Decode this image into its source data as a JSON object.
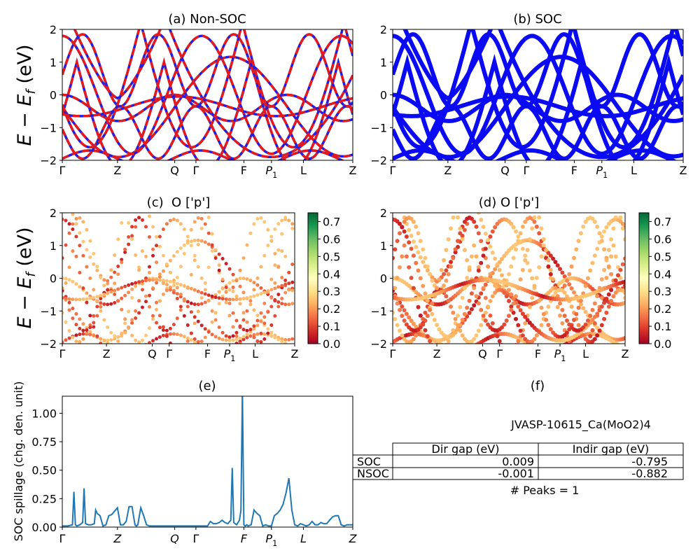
{
  "chart_data": [
    {
      "panel": "a",
      "type": "line",
      "title": "(a) Non-SOC",
      "ylabel": "E − E_f (eV)",
      "ylim": [
        -2,
        2
      ],
      "yticks": [
        "2",
        "1",
        "0",
        "−1",
        "−2"
      ],
      "xticks": [
        "Γ",
        "Z",
        "Q",
        "Γ",
        "F",
        "P1",
        "L",
        "Z"
      ],
      "series": [
        {
          "color": "#1f1fe6",
          "style": "solid",
          "legend_shown": false
        },
        {
          "color": "#e61a1a",
          "style": "dashed",
          "legend_shown": false
        }
      ]
    },
    {
      "panel": "b",
      "type": "line",
      "title": "(b) SOC",
      "ylim": [
        -2,
        2
      ],
      "yticks": [
        "2",
        "1",
        "0",
        "−1",
        "−2"
      ],
      "xticks": [
        "Γ",
        "Z",
        "Q",
        "Γ",
        "F",
        "P1",
        "L",
        "Z"
      ],
      "series": [
        {
          "color": "#0a0af5",
          "style": "solid",
          "legend_shown": false
        }
      ]
    },
    {
      "panel": "c",
      "type": "scatter",
      "title": "(c)  O ['p']",
      "ylabel": "E − E_f (eV)",
      "ylim": [
        -2,
        2
      ],
      "yticks": [
        "2",
        "1",
        "0",
        "−1",
        "−2"
      ],
      "xticks": [
        "Γ",
        "Z",
        "Q",
        "Γ",
        "F",
        "P1",
        "L",
        "Z"
      ],
      "colorbar": {
        "colormap": "RdYlGn",
        "range": [
          0.0,
          0.75
        ],
        "ticks": [
          "0.7",
          "0.6",
          "0.5",
          "0.4",
          "0.3",
          "0.2",
          "0.1",
          "0.0"
        ]
      }
    },
    {
      "panel": "d",
      "type": "scatter",
      "title": "(d) O ['p']",
      "ylim": [
        -2,
        2
      ],
      "yticks": [
        "2",
        "1",
        "0",
        "−1",
        "−2"
      ],
      "xticks": [
        "Γ",
        "Z",
        "Q",
        "Γ",
        "F",
        "P1",
        "L",
        "Z"
      ],
      "colorbar": {
        "colormap": "RdYlGn",
        "range": [
          0.0,
          0.75
        ],
        "ticks": [
          "0.7",
          "0.6",
          "0.5",
          "0.4",
          "0.3",
          "0.2",
          "0.1",
          "0.0"
        ]
      }
    },
    {
      "panel": "e",
      "type": "line",
      "title": "(e)",
      "ylabel": "SOC spillage (chg. den. unit)",
      "ylim": [
        0,
        1.15
      ],
      "yticks": [
        "1.00",
        "0.75",
        "0.50",
        "0.25",
        "0.00"
      ],
      "xticks": [
        "Γ",
        "Z",
        "Q",
        "Γ",
        "F",
        "P1",
        "L",
        "Z"
      ],
      "color": "#1f77b4",
      "x": [
        0,
        0.02,
        0.035,
        0.04,
        0.045,
        0.05,
        0.06,
        0.07,
        0.075,
        0.08,
        0.09,
        0.1,
        0.11,
        0.115,
        0.12,
        0.125,
        0.13,
        0.14,
        0.15,
        0.16,
        0.17,
        0.18,
        0.19,
        0.2,
        0.21,
        0.22,
        0.23,
        0.24,
        0.25,
        0.255,
        0.26,
        0.27,
        0.28,
        0.29,
        0.3,
        0.31,
        0.32,
        0.33,
        0.34,
        0.35,
        0.4,
        0.45,
        0.48,
        0.5,
        0.51,
        0.52,
        0.53,
        0.54,
        0.55,
        0.56,
        0.57,
        0.58,
        0.585,
        0.59,
        0.6,
        0.61,
        0.615,
        0.62,
        0.625,
        0.63,
        0.635,
        0.64,
        0.65,
        0.66,
        0.67,
        0.68,
        0.69,
        0.7,
        0.71,
        0.72,
        0.73,
        0.74,
        0.75,
        0.76,
        0.77,
        0.78,
        0.79,
        0.8,
        0.81,
        0.82,
        0.83,
        0.84,
        0.85,
        0.86,
        0.87,
        0.88,
        0.89,
        0.9,
        0.91,
        0.92,
        0.93,
        0.94,
        0.95,
        0.96,
        0.97,
        0.98,
        0.99,
        1.0
      ],
      "y": [
        0.01,
        0.01,
        0.02,
        0.31,
        0.02,
        0.01,
        0.02,
        0.04,
        0.34,
        0.03,
        0.02,
        0.02,
        0.03,
        0.15,
        0.12,
        0.11,
        0.1,
        0.01,
        0.02,
        0.1,
        0.11,
        0.14,
        0.17,
        0.02,
        0.02,
        0.05,
        0.18,
        0.18,
        0.02,
        0.01,
        0.02,
        0.17,
        0.1,
        0.02,
        0.01,
        0.01,
        0.01,
        0.01,
        0.01,
        0.01,
        0.01,
        0.01,
        0.01,
        0.01,
        0.05,
        0.03,
        0.03,
        0.04,
        0.06,
        0.04,
        0.03,
        0.06,
        0.52,
        0.04,
        0.02,
        0.06,
        0.15,
        1.2,
        0.02,
        0.01,
        0.02,
        0.01,
        0.02,
        0.15,
        0.12,
        0.1,
        0.01,
        0.02,
        0.01,
        0.01,
        0.1,
        0.12,
        0.15,
        0.2,
        0.3,
        0.43,
        0.15,
        0.02,
        0.01,
        0.03,
        0.02,
        0.01,
        0.02,
        0.05,
        0.02,
        0.02,
        0.04,
        0.03,
        0.03,
        0.06,
        0.09,
        0.1,
        0.1,
        0.02,
        0.01,
        0.02,
        0.02,
        0.02
      ]
    },
    {
      "panel": "f",
      "type": "table",
      "title": "(f)",
      "heading": "JVASP-10615_Ca(MoO2)4",
      "columns": [
        "",
        "Dir gap (eV)",
        "Indir gap (eV)"
      ],
      "rows": [
        [
          "SOC",
          "0.009",
          "-0.795"
        ],
        [
          "NSOC",
          "-0.001",
          "-0.882"
        ]
      ],
      "footer": "# Peaks = 1"
    }
  ]
}
